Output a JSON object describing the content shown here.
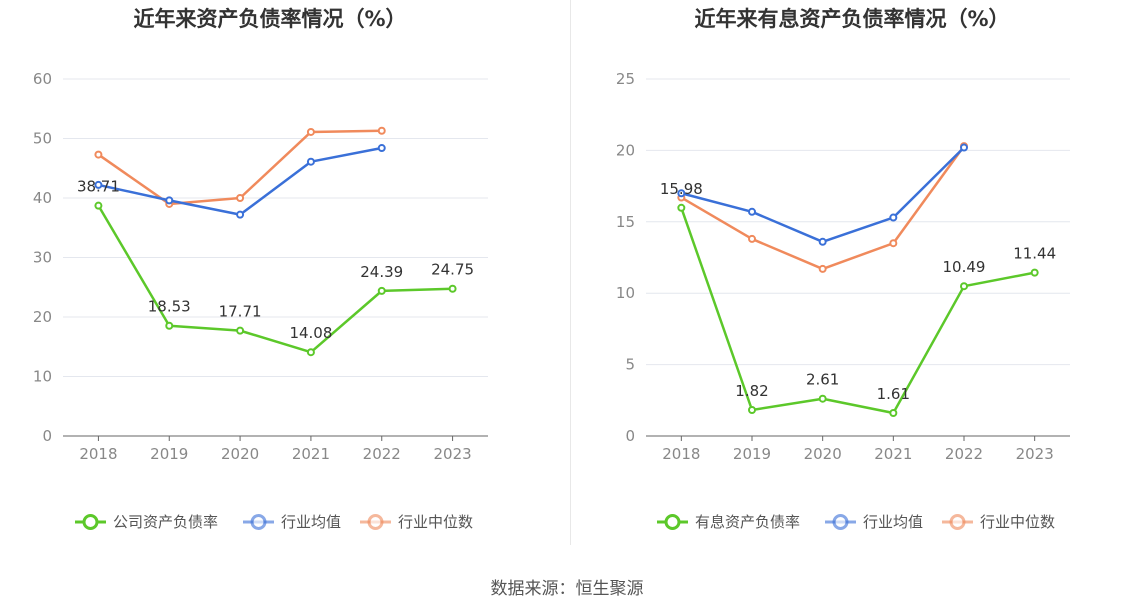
{
  "source_text": "数据来源：恒生聚源",
  "chart_data": [
    {
      "type": "line",
      "title": "近年来资产负债率情况（%）",
      "categories": [
        "2018",
        "2019",
        "2020",
        "2021",
        "2022",
        "2023"
      ],
      "ylim": [
        0,
        60
      ],
      "yticks": [
        0,
        10,
        20,
        30,
        40,
        50,
        60
      ],
      "grid": true,
      "legend_position": "bottom",
      "series": [
        {
          "name": "公司资产负债率",
          "color": "#5cc82a",
          "values": [
            38.71,
            18.53,
            17.71,
            14.08,
            24.39,
            24.75
          ],
          "labels": [
            "38.71",
            "18.53",
            "17.71",
            "14.08",
            "24.39",
            "24.75"
          ]
        },
        {
          "name": "行业均值",
          "color": "#3a70d8",
          "values": [
            42.2,
            39.6,
            37.2,
            46.1,
            48.4,
            null
          ]
        },
        {
          "name": "行业中位数",
          "color": "#f08a5c",
          "values": [
            47.3,
            39.0,
            40.0,
            51.1,
            51.3,
            null
          ]
        }
      ]
    },
    {
      "type": "line",
      "title": "近年来有息资产负债率情况（%）",
      "categories": [
        "2018",
        "2019",
        "2020",
        "2021",
        "2022",
        "2023"
      ],
      "ylim": [
        0,
        25
      ],
      "yticks": [
        0,
        5,
        10,
        15,
        20,
        25
      ],
      "grid": true,
      "legend_position": "bottom",
      "series": [
        {
          "name": "有息资产负债率",
          "color": "#5cc82a",
          "values": [
            15.98,
            1.82,
            2.61,
            1.61,
            10.49,
            11.44
          ],
          "labels": [
            "15.98",
            "1.82",
            "2.61",
            "1.61",
            "10.49",
            "11.44"
          ]
        },
        {
          "name": "行业均值",
          "color": "#3a70d8",
          "values": [
            17.0,
            15.7,
            13.6,
            15.3,
            20.2,
            null
          ]
        },
        {
          "name": "行业中位数",
          "color": "#f08a5c",
          "values": [
            16.7,
            13.8,
            11.7,
            13.5,
            20.3,
            null
          ]
        }
      ]
    }
  ]
}
